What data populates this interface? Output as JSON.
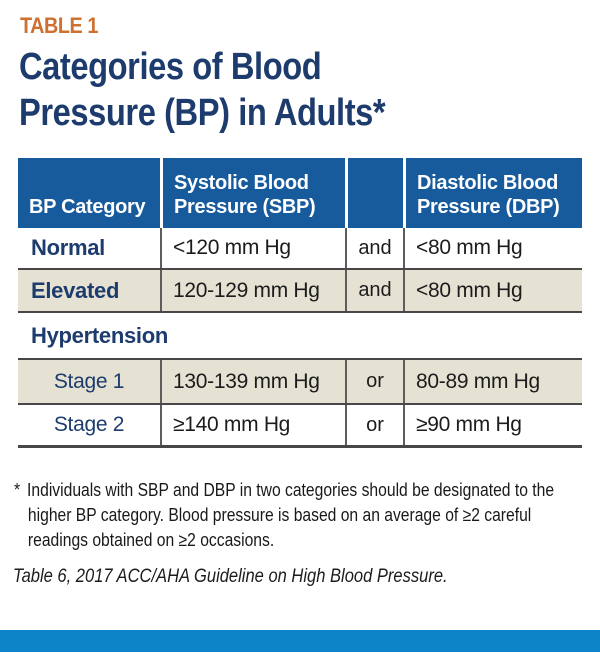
{
  "page": {
    "table_label": "TABLE 1",
    "title": "Categories of Blood\nPressure (BP) in Adults*"
  },
  "table": {
    "headers": {
      "category": "BP Category",
      "sbp": "Systolic Blood\nPressure (SBP)",
      "spacer": "",
      "dbp": "Diastolic Blood\nPressure (DBP)"
    },
    "rows": [
      {
        "category": "Normal",
        "sbp": "<120 mm Hg",
        "conj": "and",
        "dbp": "<80 mm Hg"
      },
      {
        "category": "Elevated",
        "sbp": "120-129 mm Hg",
        "conj": "and",
        "dbp": "<80 mm Hg"
      }
    ],
    "section_label": "Hypertension",
    "sub_rows": [
      {
        "category": "Stage 1",
        "sbp": "130-139 mm Hg",
        "conj": "or",
        "dbp": "80-89 mm Hg"
      },
      {
        "category": "Stage 2",
        "sbp": "≥140 mm Hg",
        "conj": "or",
        "dbp": "≥90 mm Hg"
      }
    ]
  },
  "footnote": {
    "marker": "*",
    "lines": [
      "Individuals with SBP and DBP in two categories should be designated to the",
      "higher BP category. Blood pressure is based on an average of ≥2 careful",
      "readings obtained on ≥2 occasions."
    ]
  },
  "source": "Table 6, 2017 ACC/AHA Guideline on High Blood Pressure.",
  "colors": {
    "header_blue": "#175b9d",
    "accent_orange": "#cd7030",
    "navy": "#1d3c6d",
    "beige": "#e5e1d3",
    "bottom_bar_blue": "#0d84c8"
  }
}
